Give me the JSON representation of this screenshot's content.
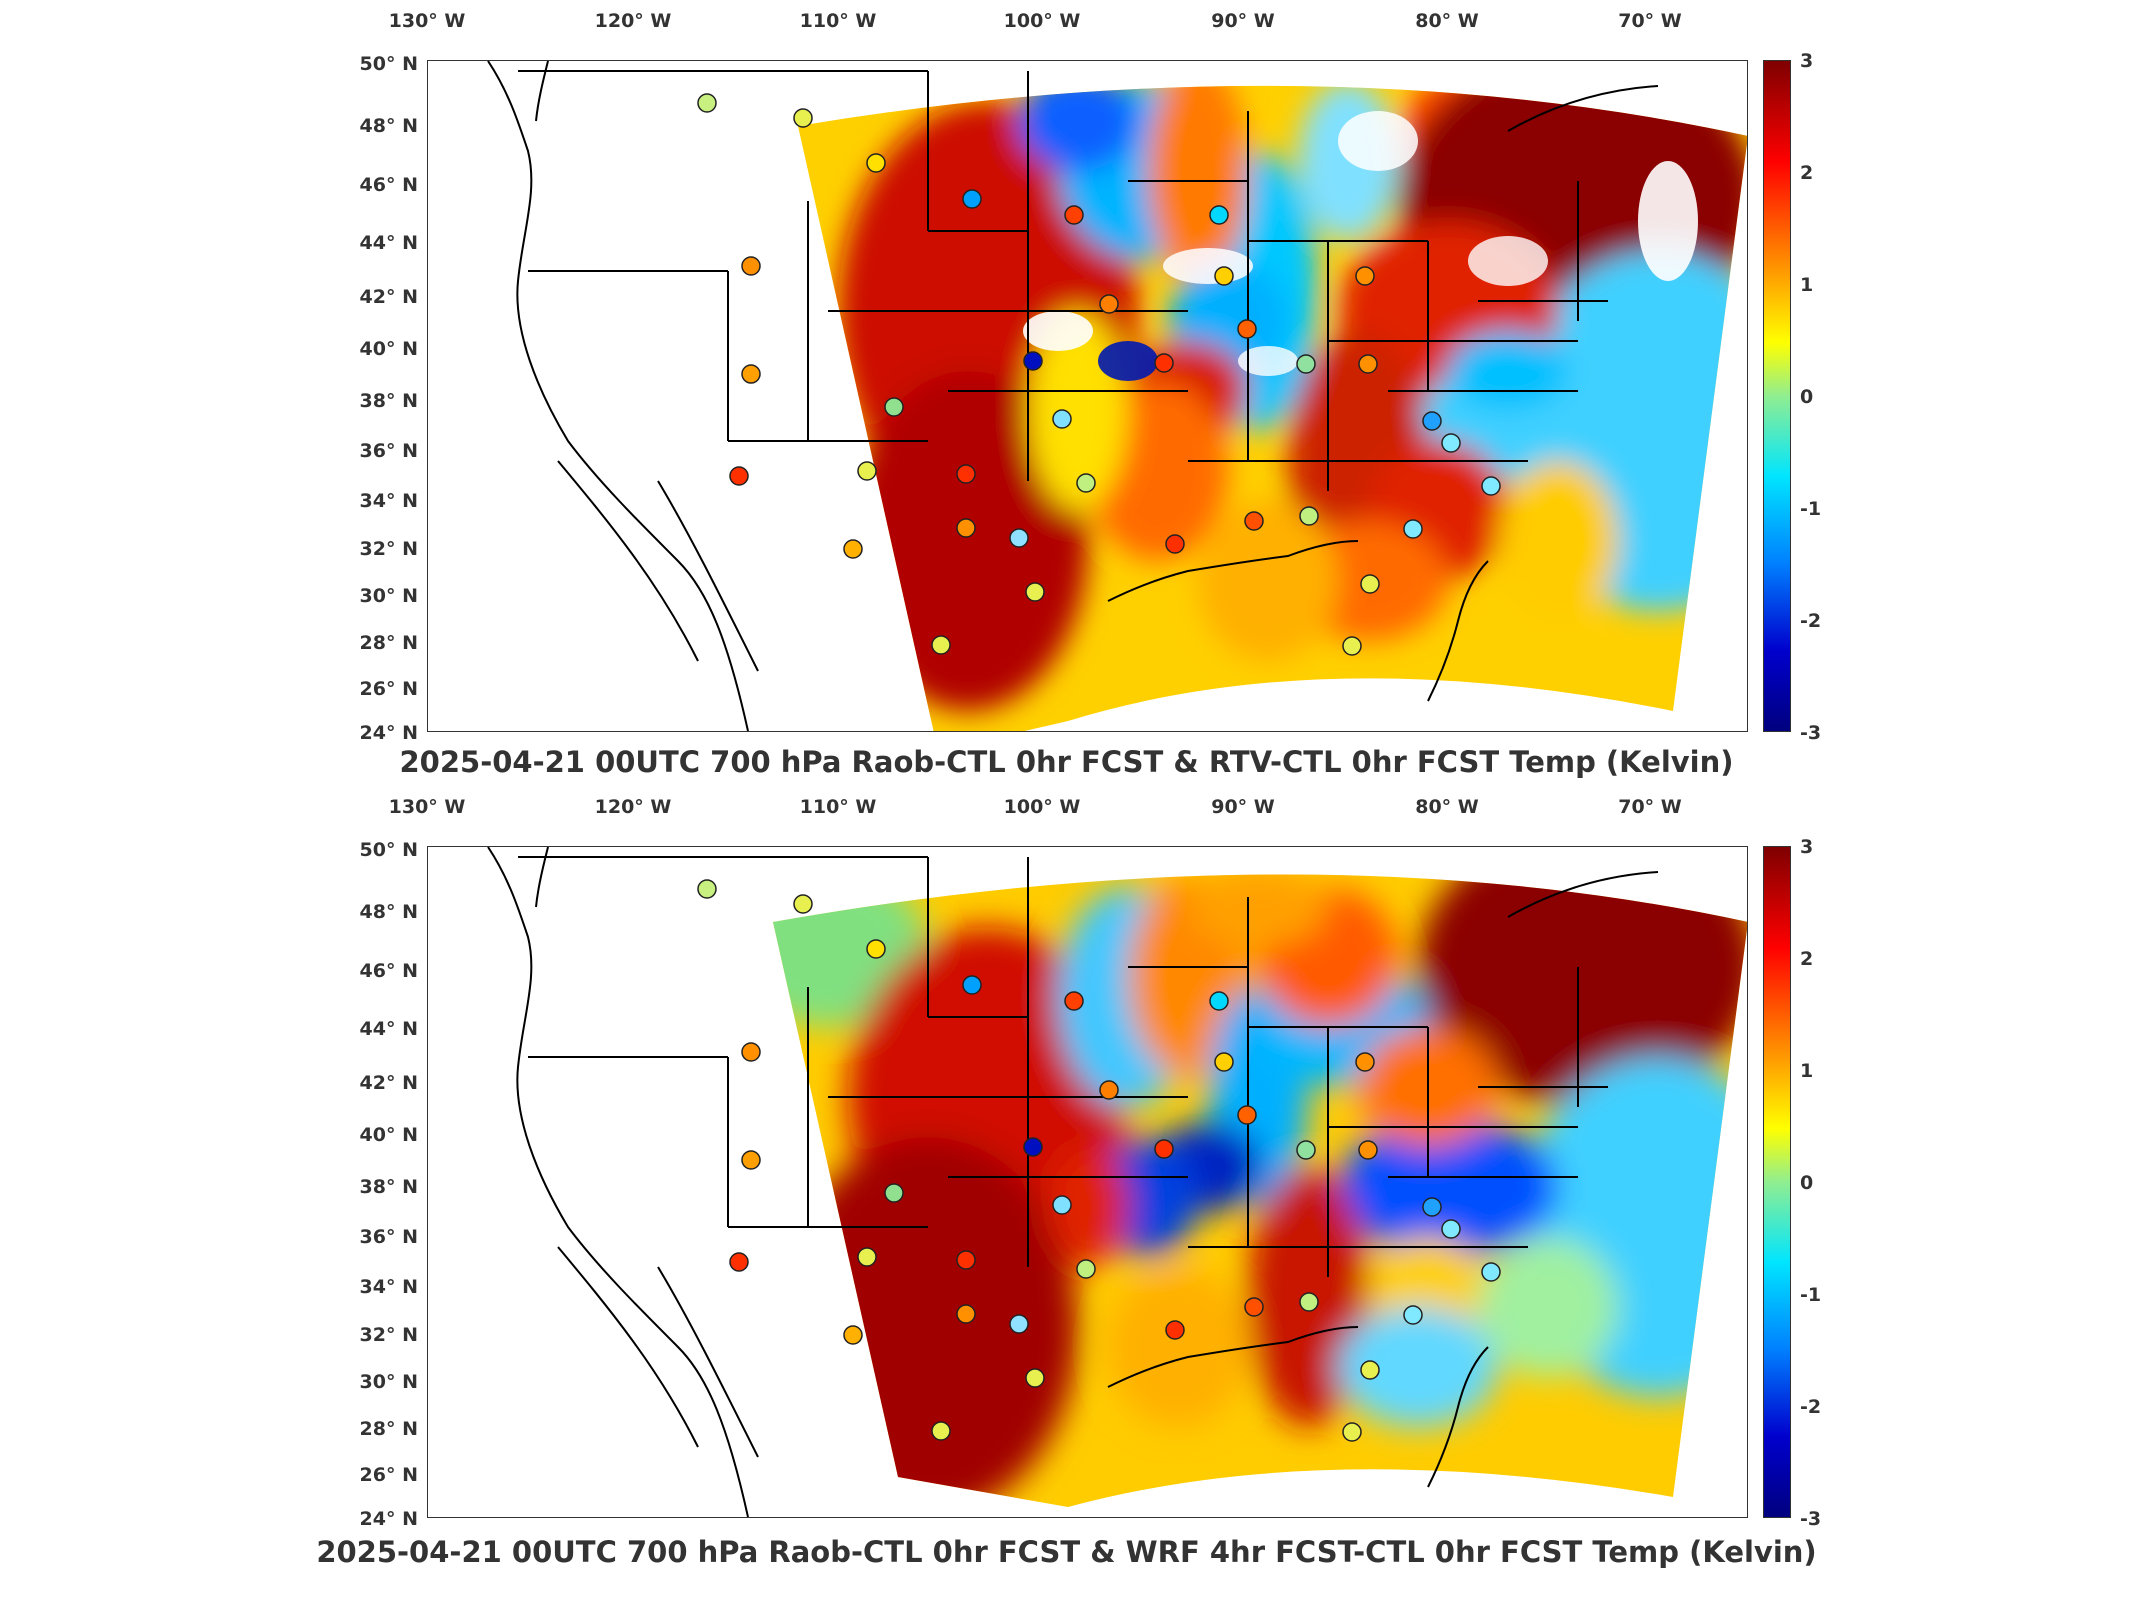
{
  "panels": [
    {
      "caption": "2025-04-21 00UTC 700 hPa Raob-CTL 0hr FCST & RTV-CTL 0hr FCST Temp (Kelvin)",
      "lon_labels": [
        "130° W",
        "120° W",
        "110° W",
        "100° W",
        "90° W",
        "80° W",
        "70° W"
      ],
      "lat_labels": [
        "50° N",
        "48° N",
        "46° N",
        "44° N",
        "42° N",
        "40° N",
        "38° N",
        "36° N",
        "34° N",
        "32° N",
        "30° N",
        "28° N",
        "26° N",
        "24° N"
      ],
      "colorbar_ticks": [
        "3",
        "2",
        "1",
        "0",
        "-1",
        "-2",
        "-3"
      ]
    },
    {
      "caption": "2025-04-21 00UTC 700 hPa Raob-CTL 0hr FCST & WRF 4hr FCST-CTL 0hr FCST Temp (Kelvin)",
      "lon_labels": [
        "130° W",
        "120° W",
        "110° W",
        "100° W",
        "90° W",
        "80° W",
        "70° W"
      ],
      "lat_labels": [
        "50° N",
        "48° N",
        "46° N",
        "44° N",
        "42° N",
        "40° N",
        "38° N",
        "36° N",
        "34° N",
        "32° N",
        "30° N",
        "28° N",
        "26° N",
        "24° N"
      ],
      "colorbar_ticks": [
        "3",
        "2",
        "1",
        "0",
        "-1",
        "-2",
        "-3"
      ]
    }
  ],
  "colormap": [
    "#7f0000",
    "#ff0000",
    "#ff8c00",
    "#ffff00",
    "#90ee90",
    "#00e5ff",
    "#0080ff",
    "#0000cd",
    "#00007f"
  ]
}
